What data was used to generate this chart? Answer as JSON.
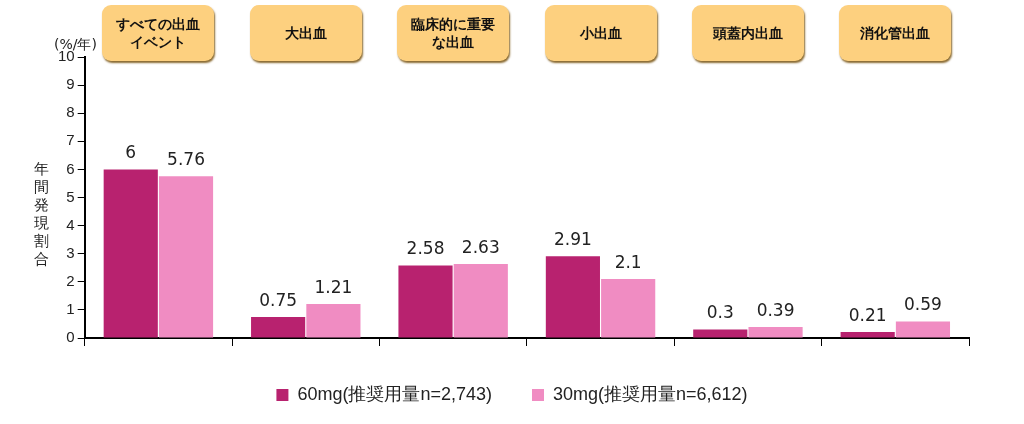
{
  "chart_data": {
    "type": "bar",
    "ylabel": "年間発現割合",
    "annotations": [
      "(%/年)"
    ],
    "categories": [
      "すべての出血イベント",
      "大出血",
      "臨床的に重要な出血",
      "小出血",
      "頭蓋内出血",
      "消化管出血"
    ],
    "series": [
      {
        "name": "60mg(推奨用量n=2,743)",
        "color": "#b8226f",
        "values": [
          6,
          0.75,
          2.58,
          2.91,
          0.3,
          0.21
        ]
      },
      {
        "name": "30mg(推奨用量n=6,612)",
        "color": "#f08cc2",
        "values": [
          5.76,
          1.21,
          2.63,
          2.1,
          0.39,
          0.59
        ]
      }
    ],
    "ylim": [
      0,
      10
    ],
    "yticks": [
      0,
      1,
      2,
      3,
      4,
      5,
      6,
      7,
      8,
      9,
      10
    ],
    "grid": false,
    "legend": "bottom",
    "data_labels": true
  }
}
